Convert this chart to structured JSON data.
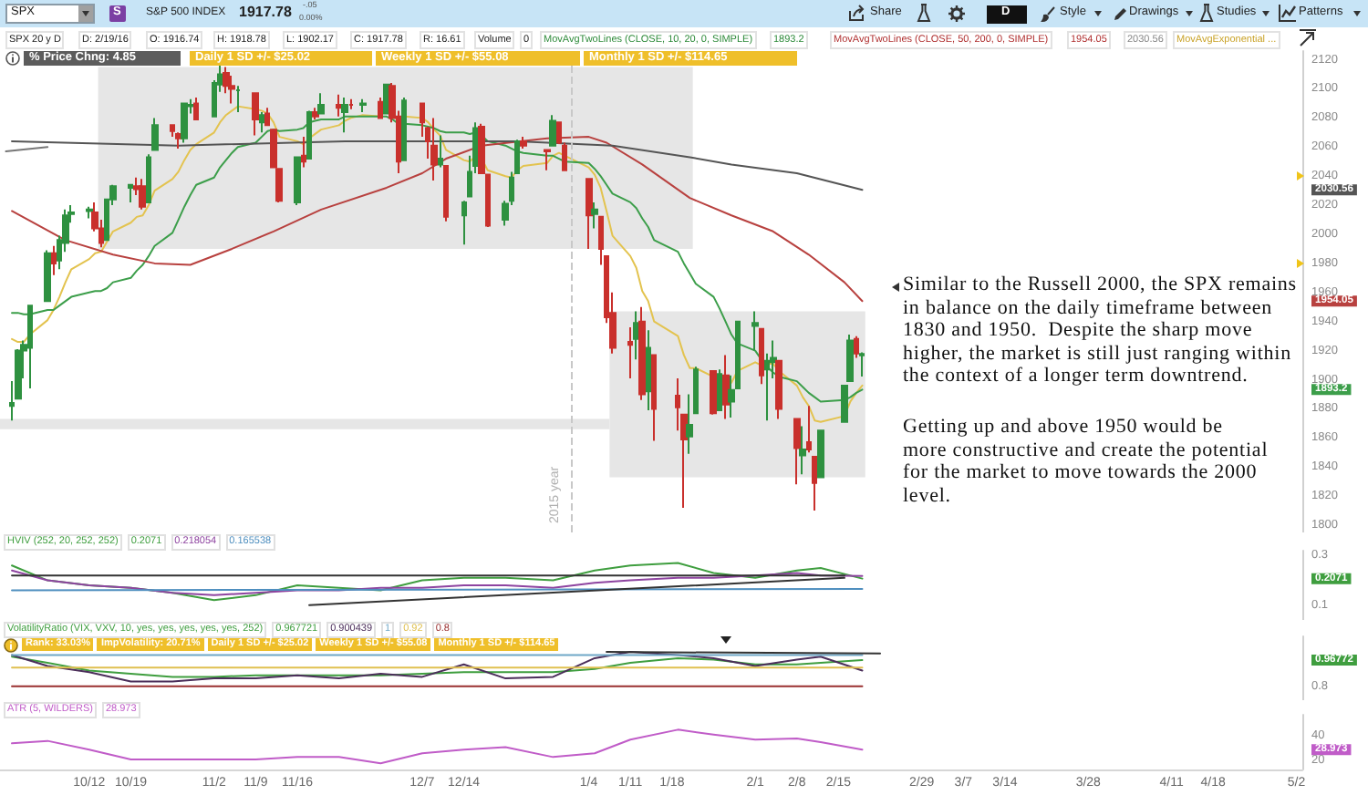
{
  "chart_data": [
    {
      "type": "candlestick",
      "annotations": [
        "SPX",
        "S",
        "S&P 500 INDEX",
        "1917.78",
        "-.05",
        "0.00%",
        "Share",
        "D",
        "Style",
        "Drawings",
        "Studies",
        "Patterns",
        "SPX 20 y D",
        "D: 2/19/16",
        "O: 1916.74",
        "H: 1918.78",
        "L: 1902.17",
        "C: 1917.78",
        "R: 16.61",
        "Volume",
        "0",
        "MovAvgTwoLines (CLOSE, 10, 20, 0, SIMPLE)",
        "1893.2",
        "MovAvgTwoLines (CLOSE, 50, 200, 0, SIMPLE)",
        "1954.05",
        "2030.56",
        "MovAvgExponential ...",
        "% Price Chng: 4.85",
        "Daily 1 SD +/- $25.02",
        "Weekly 1 SD +/- $55.08",
        "Monthly 1 SD +/- $114.65",
        "Similar to the Russell 2000, the SPX remains\nin balance on the daily timeframe between\n1830 and 1950.  Despite the sharp move\nhigher, the market is still just ranging within\nthe context of a longer term downtrend.",
        "Getting up and above 1950 would be\nmore constructive and create the potential\nfor the market to move towards the 2000\nlevel."
      ],
      "x": [
        "2015-09-29",
        "2015-09-30",
        "2015-10-01",
        "2015-10-02",
        "2015-10-05",
        "2015-10-06",
        "2015-10-07",
        "2015-10-08",
        "2015-10-09",
        "2015-10-12",
        "2015-10-13",
        "2015-10-14",
        "2015-10-15",
        "2015-10-16",
        "2015-10-19",
        "2015-10-20",
        "2015-10-21",
        "2015-10-22",
        "2015-10-23",
        "2015-10-26",
        "2015-10-27",
        "2015-10-28",
        "2015-10-29",
        "2015-10-30",
        "2015-11-02",
        "2015-11-03",
        "2015-11-04",
        "2015-11-05",
        "2015-11-06",
        "2015-11-09",
        "2015-11-10",
        "2015-11-11",
        "2015-11-12",
        "2015-11-13",
        "2015-11-16",
        "2015-11-17",
        "2015-11-18",
        "2015-11-19",
        "2015-11-20",
        "2015-11-23",
        "2015-11-24",
        "2015-11-25",
        "2015-11-27",
        "2015-11-30",
        "2015-12-01",
        "2015-12-02",
        "2015-12-03",
        "2015-12-04",
        "2015-12-07",
        "2015-12-08",
        "2015-12-09",
        "2015-12-10",
        "2015-12-11",
        "2015-12-14",
        "2015-12-15",
        "2015-12-16",
        "2015-12-17",
        "2015-12-18",
        "2015-12-21",
        "2015-12-22",
        "2015-12-23",
        "2015-12-24",
        "2015-12-28",
        "2015-12-29",
        "2015-12-30",
        "2015-12-31",
        "2016-01-04",
        "2016-01-05",
        "2016-01-06",
        "2016-01-07",
        "2016-01-08",
        "2016-01-11",
        "2016-01-12",
        "2016-01-13",
        "2016-01-14",
        "2016-01-15",
        "2016-01-19",
        "2016-01-20",
        "2016-01-21",
        "2016-01-22",
        "2016-01-25",
        "2016-01-26",
        "2016-01-27",
        "2016-01-28",
        "2016-01-29",
        "2016-02-01",
        "2016-02-02",
        "2016-02-03",
        "2016-02-04",
        "2016-02-05",
        "2016-02-08",
        "2016-02-09",
        "2016-02-10",
        "2016-02-11",
        "2016-02-12",
        "2016-02-16",
        "2016-02-17",
        "2016-02-18",
        "2016-02-19"
      ],
      "ohlc": [
        [
          1882,
          1899,
          1872,
          1884
        ],
        [
          1887,
          1921,
          1887,
          1920
        ],
        [
          1920,
          1927,
          1901,
          1924
        ],
        [
          1922,
          1951,
          1894,
          1951
        ],
        [
          1954,
          1989,
          1954,
          1987
        ],
        [
          1987,
          1992,
          1972,
          1980
        ],
        [
          1982,
          1999,
          1976,
          1996
        ],
        [
          1994,
          2017,
          1988,
          2013
        ],
        [
          2014,
          2020,
          2008,
          2015
        ],
        [
          2016,
          2019,
          2011,
          2017
        ],
        [
          2015,
          2022,
          2002,
          2004
        ],
        [
          2004,
          2010,
          1991,
          1994
        ],
        [
          1996,
          2024,
          1996,
          2024
        ],
        [
          2024,
          2034,
          2020,
          2033
        ],
        [
          2032,
          2034,
          2022,
          2034
        ],
        [
          2033,
          2039,
          2027,
          2031
        ],
        [
          2033,
          2038,
          2017,
          2019
        ],
        [
          2022,
          2055,
          2022,
          2053
        ],
        [
          2058,
          2080,
          2058,
          2075
        ],
        [
          2075,
          2075,
          2067,
          2071
        ],
        [
          2069,
          2070,
          2059,
          2066
        ],
        [
          2066,
          2090,
          2063,
          2090
        ],
        [
          2088,
          2093,
          2083,
          2089
        ],
        [
          2090,
          2094,
          2079,
          2079
        ],
        [
          2081,
          2106,
          2081,
          2104
        ],
        [
          2103,
          2116,
          2098,
          2110
        ],
        [
          2111,
          2115,
          2097,
          2102
        ],
        [
          2102,
          2109,
          2090,
          2100
        ],
        [
          2099,
          2102,
          2084,
          2099
        ],
        [
          2097,
          2097,
          2068,
          2079
        ],
        [
          2077,
          2084,
          2070,
          2082
        ],
        [
          2083,
          2087,
          2075,
          2075
        ],
        [
          2072,
          2072,
          2046,
          2046
        ],
        [
          2045,
          2045,
          2022,
          2023
        ],
        [
          2022,
          2053,
          2020,
          2053
        ],
        [
          2054,
          2067,
          2046,
          2050
        ],
        [
          2052,
          2085,
          2052,
          2084
        ],
        [
          2084,
          2087,
          2079,
          2081
        ],
        [
          2083,
          2097,
          2083,
          2089
        ],
        [
          2089,
          2096,
          2081,
          2087
        ],
        [
          2084,
          2094,
          2070,
          2089
        ],
        [
          2089,
          2093,
          2086,
          2089
        ],
        [
          2089,
          2093,
          2084,
          2090
        ],
        [
          2091,
          2094,
          2080,
          2080
        ],
        [
          2083,
          2103,
          2083,
          2103
        ],
        [
          2102,
          2104,
          2077,
          2080
        ],
        [
          2081,
          2085,
          2042,
          2050
        ],
        [
          2051,
          2094,
          2051,
          2092
        ],
        [
          2090,
          2090,
          2067,
          2077
        ],
        [
          2073,
          2074,
          2052,
          2064
        ],
        [
          2061,
          2080,
          2037,
          2048
        ],
        [
          2048,
          2068,
          2046,
          2052
        ],
        [
          2047,
          2047,
          2009,
          2012
        ],
        [
          2013,
          2023,
          1993,
          2022
        ],
        [
          2026,
          2054,
          2026,
          2043
        ],
        [
          2047,
          2077,
          2042,
          2073
        ],
        [
          2074,
          2076,
          2042,
          2042
        ],
        [
          2041,
          2041,
          2005,
          2006
        ],
        [
          2010,
          2023,
          2006,
          2021
        ],
        [
          2023,
          2043,
          2020,
          2039
        ],
        [
          2042,
          2065,
          2042,
          2064
        ],
        [
          2064,
          2067,
          2059,
          2061
        ],
        [
          2058,
          2058,
          2044,
          2057
        ],
        [
          2061,
          2082,
          2061,
          2078
        ],
        [
          2077,
          2077,
          2062,
          2063
        ],
        [
          2061,
          2063,
          2044,
          2044
        ],
        [
          2038,
          2038,
          1990,
          2013
        ],
        [
          2014,
          2022,
          2004,
          2017
        ],
        [
          2012,
          2012,
          1979,
          1990
        ],
        [
          1985,
          1985,
          1939,
          1943
        ],
        [
          1946,
          1960,
          1918,
          1922
        ],
        [
          1926,
          1936,
          1901,
          1924
        ],
        [
          1928,
          1947,
          1914,
          1939
        ],
        [
          1940,
          1950,
          1886,
          1890
        ],
        [
          1892,
          1934,
          1879,
          1922
        ],
        [
          1917,
          1917,
          1858,
          1880
        ],
        [
          1889,
          1901,
          1865,
          1881
        ],
        [
          1876,
          1876,
          1812,
          1859
        ],
        [
          1861,
          1890,
          1849,
          1869
        ],
        [
          1877,
          1909,
          1877,
          1907
        ],
        [
          1906,
          1906,
          1876,
          1877
        ],
        [
          1879,
          1907,
          1879,
          1904
        ],
        [
          1903,
          1917,
          1873,
          1883
        ],
        [
          1885,
          1903,
          1874,
          1893
        ],
        [
          1894,
          1940,
          1894,
          1940
        ],
        [
          1937,
          1947,
          1920,
          1939
        ],
        [
          1935,
          1935,
          1897,
          1903
        ],
        [
          1907,
          1918,
          1872,
          1913
        ],
        [
          1912,
          1927,
          1901,
          1915
        ],
        [
          1913,
          1913,
          1873,
          1880
        ],
        [
          1873,
          1873,
          1828,
          1853
        ],
        [
          1848,
          1868,
          1835,
          1852
        ],
        [
          1857,
          1882,
          1850,
          1852
        ],
        [
          1847,
          1847,
          1810,
          1829
        ],
        [
          1833,
          1865,
          1833,
          1865
        ],
        [
          1871,
          1896,
          1871,
          1896
        ],
        [
          1899,
          1931,
          1899,
          1927
        ],
        [
          1928,
          1930,
          1915,
          1918
        ],
        [
          1916.74,
          1918.78,
          1902.17,
          1917.78
        ]
      ],
      "colors": [
        "#2e9140",
        "#2e9140",
        "#2e9140",
        "#2e9140",
        "#2e9140",
        "#c9302c",
        "#2e9140",
        "#2e9140",
        "#2e9140",
        "#2e9140",
        "#c9302c",
        "#c9302c",
        "#2e9140",
        "#2e9140",
        "#2e9140",
        "#c9302c",
        "#c9302c",
        "#2e9140",
        "#2e9140",
        "#c9302c",
        "#c9302c",
        "#2e9140",
        "#2e9140",
        "#c9302c",
        "#2e9140",
        "#2e9140",
        "#c9302c",
        "#c9302c",
        "#2e9140",
        "#c9302c",
        "#2e9140",
        "#c9302c",
        "#c9302c",
        "#c9302c",
        "#2e9140",
        "#c9302c",
        "#2e9140",
        "#c9302c",
        "#2e9140",
        "#c9302c",
        "#2e9140",
        "#c9302c",
        "#2e9140",
        "#c9302c",
        "#2e9140",
        "#c9302c",
        "#c9302c",
        "#2e9140",
        "#c9302c",
        "#c9302c",
        "#c9302c",
        "#2e9140",
        "#c9302c",
        "#2e9140",
        "#2e9140",
        "#2e9140",
        "#c9302c",
        "#c9302c",
        "#2e9140",
        "#2e9140",
        "#2e9140",
        "#c9302c",
        "#c9302c",
        "#2e9140",
        "#c9302c",
        "#c9302c",
        "#c9302c",
        "#2e9140",
        "#c9302c",
        "#c9302c",
        "#c9302c",
        "#c9302c",
        "#2e9140",
        "#c9302c",
        "#2e9140",
        "#c9302c",
        "#c9302c",
        "#c9302c",
        "#2e9140",
        "#2e9140",
        "#c9302c",
        "#2e9140",
        "#c9302c",
        "#2e9140",
        "#2e9140",
        "#2e9140",
        "#c9302c",
        "#2e9140",
        "#2e9140",
        "#c9302c",
        "#c9302c",
        "#2e9140",
        "#c9302c",
        "#c9302c",
        "#2e9140",
        "#2e9140",
        "#2e9140",
        "#c9302c",
        "#2e9140"
      ],
      "series": [
        {
          "type": "line",
          "color": "#e3c34f",
          "values": [
            1928,
            1926,
            1926,
            1931,
            1941,
            1948,
            1957,
            1967,
            1976,
            1983,
            1987,
            1988,
            1995,
            2002,
            2008,
            2012,
            2013,
            2020,
            2030,
            2038,
            2043,
            2051,
            2058,
            2062,
            2070,
            2077,
            2082,
            2085,
            2088,
            2086,
            2085,
            2083,
            2077,
            2067,
            2064,
            2062,
            2066,
            2069,
            2072,
            2075,
            2078,
            2080,
            2082,
            2081,
            null,
            null,
            null,
            2081,
            2080,
            2077,
            2072,
            2068,
            2058,
            2051,
            2050,
            2054,
            2052,
            2044,
            2040,
            2039,
            2044,
            2047,
            2049,
            2054,
            2056,
            2054,
            2046,
            2041,
            2032,
            2016,
            1999,
            1985,
            1977,
            1961,
            1954,
            1940,
            1930,
            1917,
            1908,
            1908,
            1902,
            null,
            1899,
            1898,
            1906,
            1912,
            1910,
            1911,
            1911,
            1906,
            1896,
            1888,
            1882,
            1872,
            1871,
            1875,
            1885,
            1891,
            1896
          ]
        },
        {
          "type": "line",
          "color": "#3c9e4a",
          "values": [
            1946,
            1946,
            1945,
            1945,
            1948,
            1948,
            1951,
            1954,
            1957,
            1960,
            1961,
            1961,
            1963,
            1967,
            1970,
            1975,
            1979,
            1985,
            1992,
            2001,
            2010,
            2019,
            2027,
            2034,
            2039,
            2046,
            2051,
            2056,
            2060,
            2063,
            2067,
            2071,
            2072,
            2071,
            2072,
            2073,
            2077,
            2078,
            2079,
            2079,
            2081,
            2081,
            2081,
            2081,
            2081,
            2079,
            2076,
            2076,
            2075,
            2074,
            2073,
            2071,
            2070,
            2070,
            2069,
            2070,
            2068,
            2064,
            2061,
            2059,
            2057,
            2056,
            2054,
            2054,
            2052,
            2050,
            2049,
            2045,
            2040,
            2034,
            2028,
            2022,
            2018,
            2011,
            2005,
            1996,
            1988,
            1980,
            1973,
            1966,
            1957,
            1949,
            1940,
            1931,
            1925,
            1920,
            1914,
            1909,
            1905,
            1902,
            1899,
            1895,
            1891,
            1888,
            1885,
            1886,
            1888,
            1891,
            1893.2
          ]
        },
        {
          "type": "line",
          "color": "#b8413f",
          "x": [
            "2015-09-29",
            "2015-10-08",
            "2015-10-16",
            "2015-10-23",
            "2015-10-29",
            "2015-11-05",
            "2015-11-12",
            "2015-11-20",
            "2015-12-01",
            "2015-12-07",
            "2015-12-11",
            "2015-12-17",
            "2015-12-28",
            "2016-01-04",
            "2016-01-07",
            "2016-01-13",
            "2016-01-21",
            "2016-01-28",
            "2016-02-04",
            "2016-02-10",
            "2016-02-16",
            "2016-02-19"
          ],
          "values": [
            2016,
            1996,
            1986,
            1980,
            1979,
            1990,
            2002,
            2017,
            2032,
            2042,
            2052,
            2061,
            2066,
            2067,
            2063,
            2048,
            2025,
            2013,
            2002,
            1986,
            1967,
            1954.05
          ]
        },
        {
          "type": "line",
          "color": "#555555",
          "x": [
            "2015-09-29",
            "2015-10-27",
            "2015-11-24",
            "2015-12-23",
            "2016-01-08",
            "2016-01-21",
            "2016-01-28",
            "2016-02-08",
            "2016-02-19"
          ],
          "values": [
            2064,
            2061,
            2064,
            2064,
            2061,
            2053,
            2048,
            2042,
            2030.56
          ]
        },
        {
          "type": "line",
          "color": "#777777",
          "x": [
            "2015-09-28",
            "2015-10-05"
          ],
          "values": [
            2057,
            2060
          ]
        },
        {
          "type": "line",
          "color": "#e6e6e6",
          "x": [
            "2015-10-13T12:00",
            "2016-01-21T12:00"
          ],
          "values": [
            null,
            null
          ],
          "lower": [
            1990,
            1990
          ],
          "upper": [
            2115,
            2115
          ]
        },
        {
          "type": "line",
          "color": "#e6e6e6",
          "x": [
            "2016-01-07T12:00",
            "2016-02-19T12:00"
          ],
          "values": [
            null,
            null
          ],
          "lower": [
            1833,
            1833
          ],
          "upper": [
            1947,
            1947
          ]
        },
        {
          "type": "line",
          "color": "#e6e6e6",
          "x": [
            "2015-09-27",
            "2016-01-07T12:00"
          ],
          "values": [
            null,
            null
          ],
          "lower": [
            1866,
            1866
          ],
          "upper": [
            1873,
            1873
          ]
        }
      ],
      "xlim": [
        "2015-09-27",
        "2016-05-03"
      ],
      "ylim": [
        1795,
        2126
      ],
      "yticks": [
        {
          "value": 2030.56,
          "label": "2030.56"
        },
        {
          "value": 1954.05,
          "label": "1954.05"
        },
        {
          "value": 1893.2,
          "label": "1893.2"
        },
        1800,
        1820,
        1840,
        1860,
        1880,
        1900,
        1920,
        1940,
        1960,
        1980,
        2000,
        2020,
        2040,
        2060,
        2080,
        2100,
        2120
      ],
      "tick_labels": "y",
      "ref_lines": [
        {
          "axis": "x",
          "value": "2016-01-01",
          "label": "2015 year",
          "line_style": "dashed",
          "color": "#c8c8c8"
        }
      ]
    },
    {
      "type": "line",
      "title": "HVIV (252, 20, 252, 252)",
      "annotations": [
        "0.2071",
        "0.218054",
        "0.165538"
      ],
      "x": [
        "2015-09-29",
        "2015-10-05",
        "2015-10-12",
        "2015-10-19",
        "2015-10-26",
        "2015-11-02",
        "2015-11-09",
        "2015-11-16",
        "2015-11-23",
        "2015-11-30",
        "2015-12-07",
        "2015-12-14",
        "2015-12-21",
        "2015-12-29",
        "2016-01-05",
        "2016-01-11",
        "2016-01-19",
        "2016-01-25",
        "2016-02-01",
        "2016-02-08",
        "2016-02-12",
        "2016-02-19"
      ],
      "series": [
        {
          "color": "#3f9e3f",
          "values": [
            0.26,
            0.2,
            0.18,
            0.17,
            0.15,
            0.12,
            0.14,
            0.18,
            0.17,
            0.16,
            0.2,
            0.21,
            0.21,
            0.2,
            0.24,
            0.26,
            0.27,
            0.23,
            0.21,
            0.24,
            0.25,
            0.2071
          ]
        },
        {
          "color": "#8e44a0",
          "values": [
            0.24,
            0.2,
            0.18,
            0.17,
            0.15,
            0.14,
            0.15,
            0.16,
            0.16,
            0.17,
            0.17,
            0.18,
            0.18,
            0.17,
            0.19,
            0.2,
            0.21,
            0.21,
            0.22,
            0.23,
            0.22,
            0.218054
          ]
        },
        {
          "color": "#4f8fbf",
          "x": [
            "2015-09-29",
            "2016-02-19"
          ],
          "values": [
            0.16,
            0.165538
          ]
        },
        {
          "color": "#333333",
          "x": [
            "2015-09-29",
            "2016-02-16"
          ],
          "values": [
            0.22,
            0.22
          ]
        },
        {
          "color": "#333333",
          "x": [
            "2015-11-18",
            "2016-02-16"
          ],
          "values": [
            0.1,
            0.21
          ]
        }
      ],
      "xlim": [
        "2015-09-27",
        "2016-05-03"
      ],
      "ylim": [
        0.04,
        0.32
      ],
      "yticks": [
        {
          "value": 0.2071,
          "label": "0.2071"
        },
        0.1,
        0.3
      ],
      "tick_labels": "y"
    },
    {
      "type": "line",
      "title": "VolatilityRatio (VIX, VXV, 10, yes, yes, yes, yes, yes, 252)",
      "annotations": [
        "0.967721",
        "0.900439",
        "1",
        "0.92",
        "0.8",
        "Rank: 33.03%",
        "ImpVolatility: 20.71%",
        "Daily 1 SD +/- $25.02",
        "Weekly 1 SD +/- $55.08",
        "Monthly 1 SD +/- $114.65"
      ],
      "x": [
        "2015-09-29",
        "2015-10-05",
        "2015-10-12",
        "2015-10-19",
        "2015-10-26",
        "2015-11-02",
        "2015-11-09",
        "2015-11-16",
        "2015-11-23",
        "2015-11-30",
        "2015-12-07",
        "2015-12-14",
        "2015-12-21",
        "2015-12-29",
        "2016-01-05",
        "2016-01-11",
        "2016-01-19",
        "2016-01-25",
        "2016-02-01",
        "2016-02-08",
        "2016-02-12",
        "2016-02-19"
      ],
      "series": [
        {
          "color": "#3f9e3f",
          "values": [
            0.99,
            0.95,
            0.9,
            0.88,
            0.86,
            0.86,
            0.87,
            0.87,
            0.87,
            0.87,
            0.88,
            0.89,
            0.89,
            0.89,
            0.91,
            0.95,
            0.98,
            0.97,
            0.94,
            0.94,
            0.95,
            0.967721
          ]
        },
        {
          "color": "#4b2e5a",
          "values": [
            1,
            0.93,
            0.89,
            0.83,
            0.83,
            0.85,
            0.85,
            0.87,
            0.85,
            0.88,
            0.86,
            0.94,
            0.85,
            0.86,
            0.98,
            1.02,
            1,
            0.98,
            0.93,
            0.97,
            0.99,
            0.900439
          ]
        },
        {
          "color": "#6fa8c8",
          "x": [
            "2015-09-29",
            "2016-02-19"
          ],
          "values": [
            1,
            1
          ]
        },
        {
          "color": "#e0c050",
          "x": [
            "2015-09-29",
            "2016-02-19"
          ],
          "values": [
            0.92,
            0.92
          ]
        },
        {
          "color": "#9a3030",
          "x": [
            "2015-09-29",
            "2016-02-19"
          ],
          "values": [
            0.8,
            0.8
          ]
        },
        {
          "color": "#333333",
          "x": [
            "2016-01-07",
            "2016-02-22"
          ],
          "values": [
            1.02,
            1.01
          ]
        }
      ],
      "xlim": [
        "2015-09-27",
        "2016-05-03"
      ],
      "ylim": [
        0.71,
        1.12
      ],
      "yticks": [
        {
          "value": 0.967721,
          "label": "0.96772"
        },
        0.8
      ],
      "tick_labels": "y"
    },
    {
      "type": "line",
      "title": "ATR (5, WILDERS)",
      "annotations": [
        "28.973"
      ],
      "x": [
        "2015-09-29",
        "2015-10-05",
        "2015-10-12",
        "2015-10-19",
        "2015-10-26",
        "2015-11-02",
        "2015-11-09",
        "2015-11-16",
        "2015-11-23",
        "2015-11-30",
        "2015-12-07",
        "2015-12-14",
        "2015-12-21",
        "2015-12-29",
        "2016-01-05",
        "2016-01-11",
        "2016-01-19",
        "2016-01-25",
        "2016-02-01",
        "2016-02-08",
        "2016-02-12",
        "2016-02-19"
      ],
      "series": [
        {
          "color": "#c05cc8",
          "values": [
            34,
            36,
            29,
            21,
            21,
            21,
            21,
            23,
            23,
            18,
            26,
            29,
            31,
            23,
            26,
            37,
            45,
            41,
            37,
            38,
            35,
            28.973
          ]
        }
      ],
      "xlim": [
        "2015-09-27",
        "2016-05-03"
      ],
      "ylim": [
        13,
        57
      ],
      "yticks": [
        {
          "value": 28.973,
          "label": "28.973"
        },
        40,
        20
      ],
      "xticks": [
        {
          "value": "2015-10-12",
          "label": "10/12"
        },
        {
          "value": "2015-10-19",
          "label": "10/19"
        },
        {
          "value": "2015-11-02",
          "label": "11/2"
        },
        {
          "value": "2015-11-09",
          "label": "11/9"
        },
        {
          "value": "2015-11-16",
          "label": "11/16"
        },
        {
          "value": "2015-12-07",
          "label": "12/7"
        },
        {
          "value": "2015-12-14",
          "label": "12/14"
        },
        {
          "value": "2016-01-04",
          "label": "1/4"
        },
        {
          "value": "2016-01-11",
          "label": "1/11"
        },
        {
          "value": "2016-01-18",
          "label": "1/18"
        },
        {
          "value": "2016-02-01",
          "label": "2/1"
        },
        {
          "value": "2016-02-08",
          "label": "2/8"
        },
        {
          "value": "2016-02-15",
          "label": "2/15"
        },
        {
          "value": "2016-02-29",
          "label": "2/29"
        },
        {
          "value": "2016-03-07",
          "label": "3/7"
        },
        {
          "value": "2016-03-14",
          "label": "3/14"
        },
        {
          "value": "2016-03-28",
          "label": "3/28"
        },
        {
          "value": "2016-04-11",
          "label": "4/11"
        },
        {
          "value": "2016-04-18",
          "label": "4/18"
        },
        {
          "value": "2016-05-02",
          "label": "5/2"
        }
      ]
    }
  ]
}
